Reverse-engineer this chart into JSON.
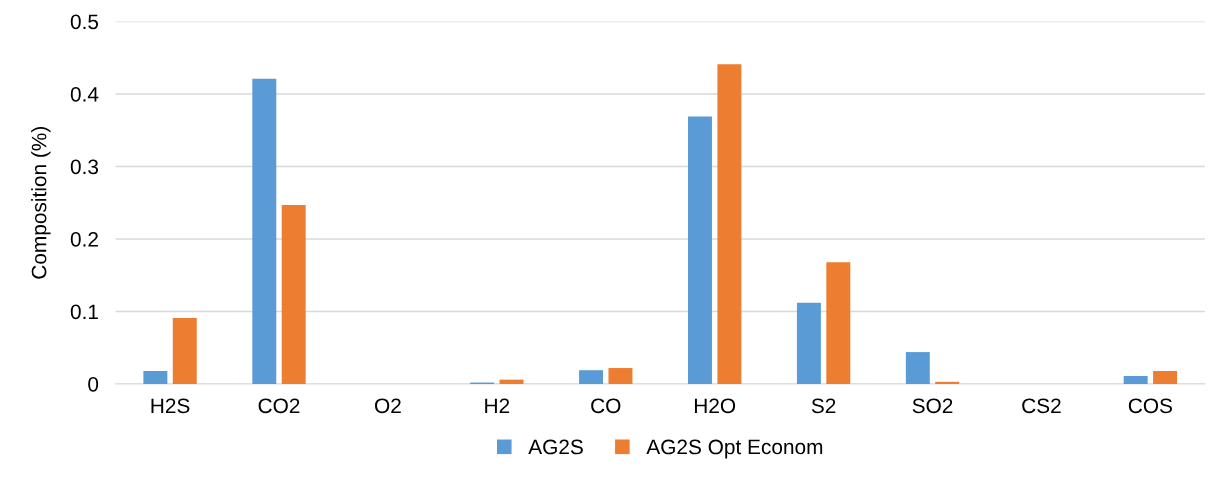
{
  "chart_data": {
    "type": "bar",
    "ylabel": "Composition (%)",
    "categories": [
      "H2S",
      "CO2",
      "O2",
      "H2",
      "CO",
      "H2O",
      "S2",
      "SO2",
      "CS2",
      "COS"
    ],
    "series": [
      {
        "name": "AG2S",
        "color": "#5b9bd5",
        "values": [
          0.018,
          0.421,
          0,
          0.002,
          0.019,
          0.369,
          0.112,
          0.044,
          0,
          0.011
        ]
      },
      {
        "name": "AG2S Opt Econom",
        "color": "#ed7d31",
        "values": [
          0.091,
          0.247,
          0,
          0.006,
          0.022,
          0.441,
          0.168,
          0.003,
          0,
          0.018
        ]
      }
    ],
    "ylim": [
      0,
      0.5
    ],
    "yticks": [
      {
        "value": 0,
        "label": "0"
      },
      0.1,
      0.2,
      0.3,
      0.4,
      0.5
    ],
    "grid": "y",
    "legend": "bottom"
  }
}
